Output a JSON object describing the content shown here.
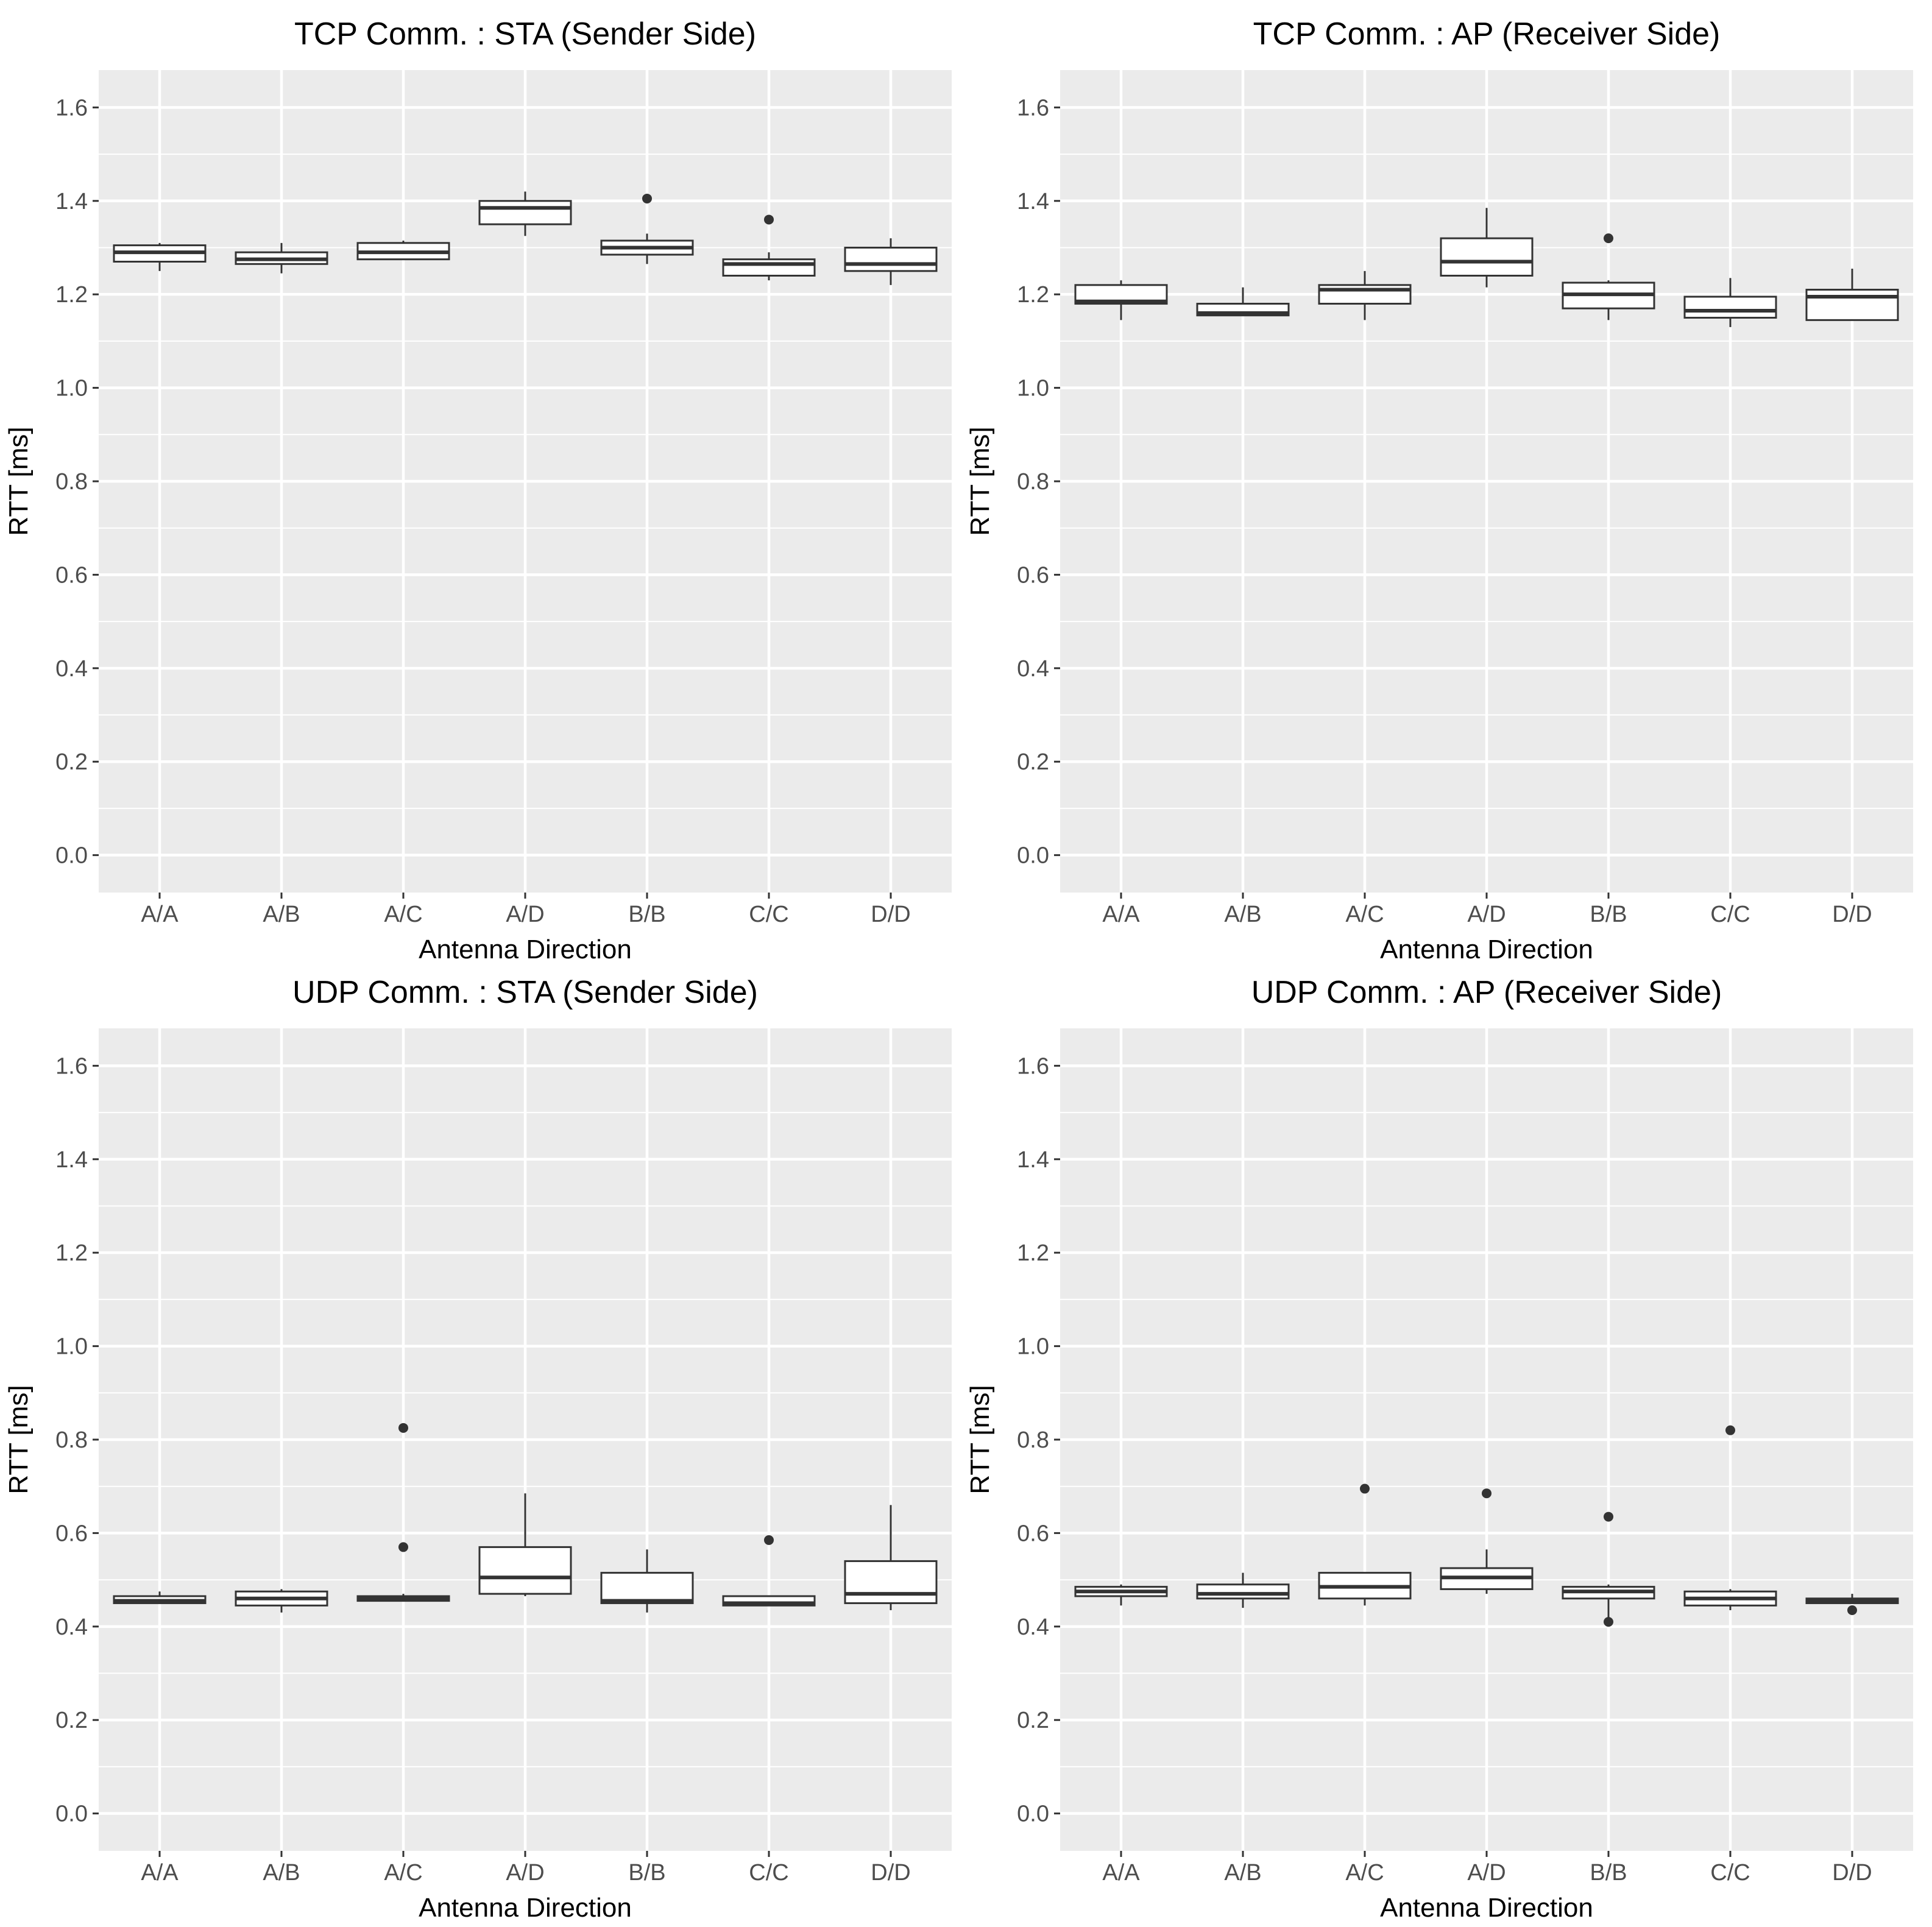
{
  "figure": {
    "background": "#ffffff",
    "panel_background": "#ebebeb",
    "grid_color": "#ffffff",
    "box_fill": "#ffffff",
    "box_stroke": "#333333",
    "outlier_color": "#333333"
  },
  "chart_data": [
    {
      "type": "box",
      "title": "TCP Comm. : STA (Sender Side)",
      "xlabel": "Antenna Direction",
      "ylabel": "RTT [ms]",
      "ylim": [
        -0.08,
        1.68
      ],
      "yticks": [
        "0.0",
        "0.2",
        "0.4",
        "0.6",
        "0.8",
        "1.0",
        "1.2",
        "1.4",
        "1.6"
      ],
      "grid": true,
      "categories": [
        "A/A",
        "A/B",
        "A/C",
        "A/D",
        "B/B",
        "C/C",
        "D/D"
      ],
      "boxes": [
        {
          "category": "A/A",
          "min": 1.25,
          "q1": 1.27,
          "median": 1.29,
          "q3": 1.305,
          "max": 1.31,
          "outliers": []
        },
        {
          "category": "A/B",
          "min": 1.245,
          "q1": 1.265,
          "median": 1.275,
          "q3": 1.29,
          "max": 1.31,
          "outliers": []
        },
        {
          "category": "A/C",
          "min": 1.275,
          "q1": 1.275,
          "median": 1.29,
          "q3": 1.31,
          "max": 1.315,
          "outliers": []
        },
        {
          "category": "A/D",
          "min": 1.325,
          "q1": 1.35,
          "median": 1.385,
          "q3": 1.4,
          "max": 1.42,
          "outliers": []
        },
        {
          "category": "B/B",
          "min": 1.265,
          "q1": 1.285,
          "median": 1.3,
          "q3": 1.315,
          "max": 1.33,
          "outliers": [
            1.405
          ]
        },
        {
          "category": "C/C",
          "min": 1.23,
          "q1": 1.24,
          "median": 1.265,
          "q3": 1.275,
          "max": 1.29,
          "outliers": [
            1.36
          ]
        },
        {
          "category": "D/D",
          "min": 1.22,
          "q1": 1.25,
          "median": 1.265,
          "q3": 1.3,
          "max": 1.32,
          "outliers": []
        }
      ]
    },
    {
      "type": "box",
      "title": "TCP Comm. : AP (Receiver Side)",
      "xlabel": "Antenna Direction",
      "ylabel": "RTT [ms]",
      "ylim": [
        -0.08,
        1.68
      ],
      "yticks": [
        "0.0",
        "0.2",
        "0.4",
        "0.6",
        "0.8",
        "1.0",
        "1.2",
        "1.4",
        "1.6"
      ],
      "grid": true,
      "categories": [
        "A/A",
        "A/B",
        "A/C",
        "A/D",
        "B/B",
        "C/C",
        "D/D"
      ],
      "boxes": [
        {
          "category": "A/A",
          "min": 1.145,
          "q1": 1.18,
          "median": 1.185,
          "q3": 1.22,
          "max": 1.23,
          "outliers": []
        },
        {
          "category": "A/B",
          "min": 1.155,
          "q1": 1.155,
          "median": 1.16,
          "q3": 1.18,
          "max": 1.215,
          "outliers": []
        },
        {
          "category": "A/C",
          "min": 1.145,
          "q1": 1.18,
          "median": 1.21,
          "q3": 1.22,
          "max": 1.25,
          "outliers": []
        },
        {
          "category": "A/D",
          "min": 1.215,
          "q1": 1.24,
          "median": 1.27,
          "q3": 1.32,
          "max": 1.385,
          "outliers": []
        },
        {
          "category": "B/B",
          "min": 1.145,
          "q1": 1.17,
          "median": 1.2,
          "q3": 1.225,
          "max": 1.23,
          "outliers": [
            1.32
          ]
        },
        {
          "category": "C/C",
          "min": 1.13,
          "q1": 1.15,
          "median": 1.165,
          "q3": 1.195,
          "max": 1.235,
          "outliers": []
        },
        {
          "category": "D/D",
          "min": 1.145,
          "q1": 1.145,
          "median": 1.195,
          "q3": 1.21,
          "max": 1.255,
          "outliers": []
        }
      ]
    },
    {
      "type": "box",
      "title": "UDP Comm. : STA (Sender Side)",
      "xlabel": "Antenna Direction",
      "ylabel": "RTT [ms]",
      "ylim": [
        -0.08,
        1.68
      ],
      "yticks": [
        "0.0",
        "0.2",
        "0.4",
        "0.6",
        "0.8",
        "1.0",
        "1.2",
        "1.4",
        "1.6"
      ],
      "grid": true,
      "categories": [
        "A/A",
        "A/B",
        "A/C",
        "A/D",
        "B/B",
        "C/C",
        "D/D"
      ],
      "boxes": [
        {
          "category": "A/A",
          "min": 0.45,
          "q1": 0.45,
          "median": 0.455,
          "q3": 0.465,
          "max": 0.475,
          "outliers": []
        },
        {
          "category": "A/B",
          "min": 0.43,
          "q1": 0.445,
          "median": 0.46,
          "q3": 0.475,
          "max": 0.48,
          "outliers": []
        },
        {
          "category": "A/C",
          "min": 0.455,
          "q1": 0.455,
          "median": 0.46,
          "q3": 0.465,
          "max": 0.47,
          "outliers": [
            0.57,
            0.825
          ]
        },
        {
          "category": "A/D",
          "min": 0.465,
          "q1": 0.47,
          "median": 0.505,
          "q3": 0.57,
          "max": 0.685,
          "outliers": []
        },
        {
          "category": "B/B",
          "min": 0.43,
          "q1": 0.45,
          "median": 0.455,
          "q3": 0.515,
          "max": 0.565,
          "outliers": []
        },
        {
          "category": "C/C",
          "min": 0.445,
          "q1": 0.445,
          "median": 0.45,
          "q3": 0.465,
          "max": 0.465,
          "outliers": [
            0.585
          ]
        },
        {
          "category": "D/D",
          "min": 0.435,
          "q1": 0.45,
          "median": 0.47,
          "q3": 0.54,
          "max": 0.66,
          "outliers": []
        }
      ]
    },
    {
      "type": "box",
      "title": "UDP Comm. : AP (Receiver Side)",
      "xlabel": "Antenna Direction",
      "ylabel": "RTT [ms]",
      "ylim": [
        -0.08,
        1.68
      ],
      "yticks": [
        "0.0",
        "0.2",
        "0.4",
        "0.6",
        "0.8",
        "1.0",
        "1.2",
        "1.4",
        "1.6"
      ],
      "grid": true,
      "categories": [
        "A/A",
        "A/B",
        "A/C",
        "A/D",
        "B/B",
        "C/C",
        "D/D"
      ],
      "boxes": [
        {
          "category": "A/A",
          "min": 0.445,
          "q1": 0.465,
          "median": 0.475,
          "q3": 0.485,
          "max": 0.49,
          "outliers": []
        },
        {
          "category": "A/B",
          "min": 0.44,
          "q1": 0.46,
          "median": 0.47,
          "q3": 0.49,
          "max": 0.515,
          "outliers": []
        },
        {
          "category": "A/C",
          "min": 0.445,
          "q1": 0.46,
          "median": 0.485,
          "q3": 0.515,
          "max": 0.515,
          "outliers": [
            0.695
          ]
        },
        {
          "category": "A/D",
          "min": 0.47,
          "q1": 0.48,
          "median": 0.505,
          "q3": 0.525,
          "max": 0.565,
          "outliers": [
            0.685
          ]
        },
        {
          "category": "B/B",
          "min": 0.415,
          "q1": 0.46,
          "median": 0.475,
          "q3": 0.485,
          "max": 0.49,
          "outliers": [
            0.41,
            0.635
          ]
        },
        {
          "category": "C/C",
          "min": 0.435,
          "q1": 0.445,
          "median": 0.46,
          "q3": 0.475,
          "max": 0.48,
          "outliers": [
            0.82
          ]
        },
        {
          "category": "D/D",
          "min": 0.45,
          "q1": 0.45,
          "median": 0.455,
          "q3": 0.46,
          "max": 0.47,
          "outliers": [
            0.435
          ]
        }
      ]
    }
  ]
}
